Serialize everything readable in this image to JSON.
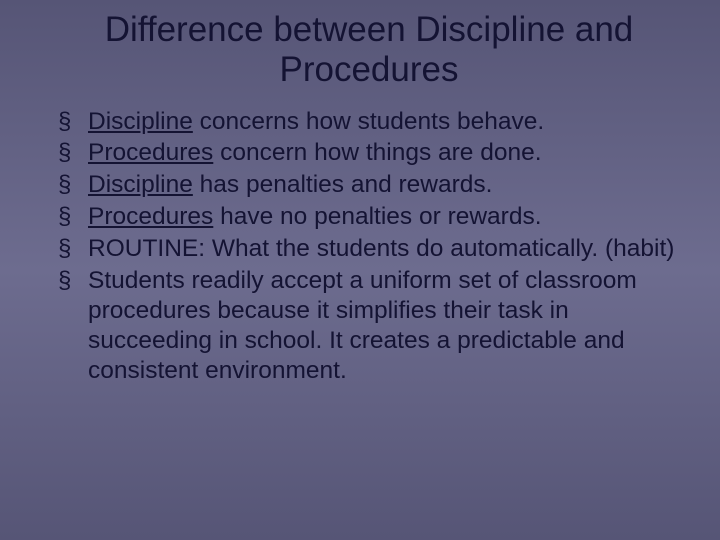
{
  "slide": {
    "title": "Difference between Discipline and Procedures",
    "title_fontsize": 35,
    "body_fontsize": 24.5,
    "background_gradient": [
      "#565576",
      "#6d6c8f",
      "#565576"
    ],
    "text_color": "#141333",
    "bullet_char": "§",
    "bullets": [
      {
        "pre": " ",
        "u": "Discipline",
        "post": " concerns how students behave."
      },
      {
        "pre": " ",
        "u": "Procedures",
        "post": " concern how things are done."
      },
      {
        "pre": " ",
        "u": "Discipline",
        "post": " has penalties and rewards."
      },
      {
        "pre": " ",
        "u": "Procedures",
        "post": " have no penalties or rewards."
      },
      {
        "pre": "ROUTINE:  What the students do automatically. (habit)",
        "u": "",
        "post": ""
      },
      {
        "pre": "Students readily accept a uniform set of classroom procedures because it simplifies their task in succeeding in school. It creates a predictable and consistent environment.",
        "u": "",
        "post": ""
      }
    ]
  }
}
